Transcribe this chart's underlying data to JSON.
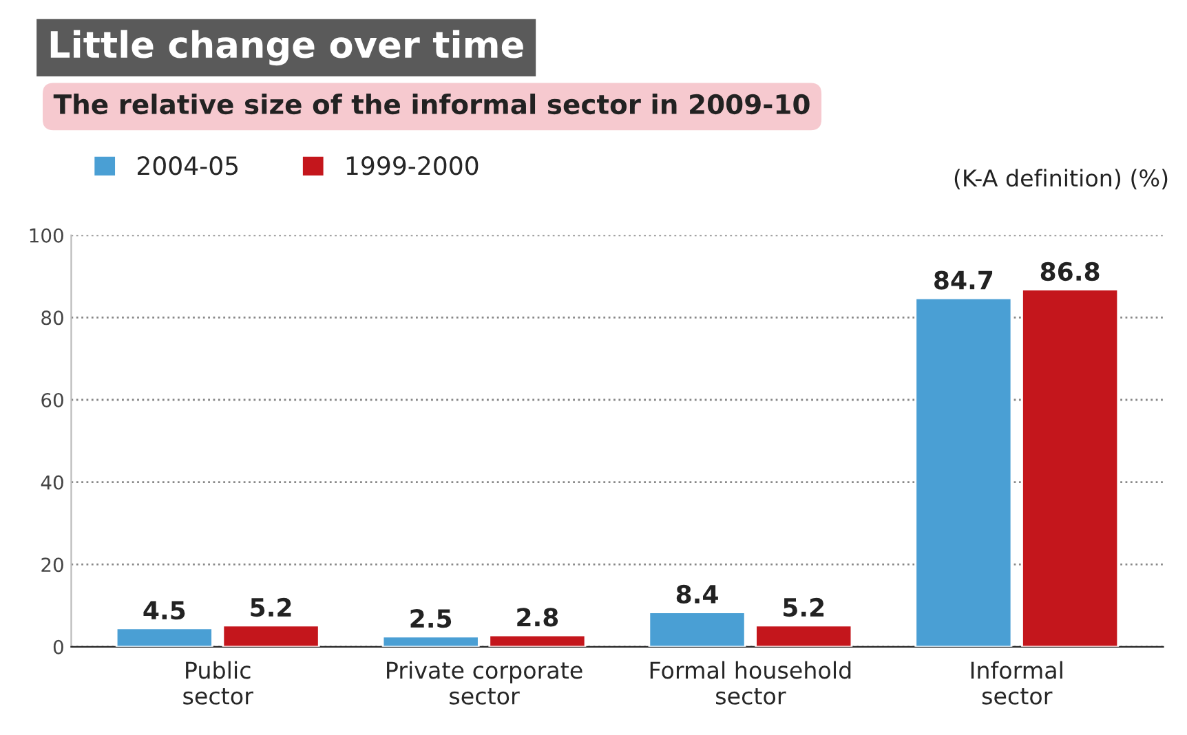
{
  "chart_data": {
    "type": "bar",
    "title": "Little change over time",
    "subtitle": "The relative size of the informal sector in 2009-10",
    "categories": [
      "Public\nsector",
      "Private corporate\nsector",
      "Formal household\nsector",
      "Informal\nsector"
    ],
    "series": [
      {
        "name": "2004-05",
        "color": "#4a9fd4",
        "values": [
          4.5,
          2.5,
          8.4,
          84.7
        ]
      },
      {
        "name": "1999-2000",
        "color": "#c4161c",
        "values": [
          5.2,
          2.8,
          5.2,
          86.8
        ]
      }
    ],
    "annotations": [
      "(K-A definition) (%)"
    ],
    "ylim": [
      0,
      100
    ],
    "yticks": [
      0,
      20,
      40,
      60,
      80,
      100
    ],
    "grid": "y",
    "legend": "top left",
    "data_labels": true
  }
}
